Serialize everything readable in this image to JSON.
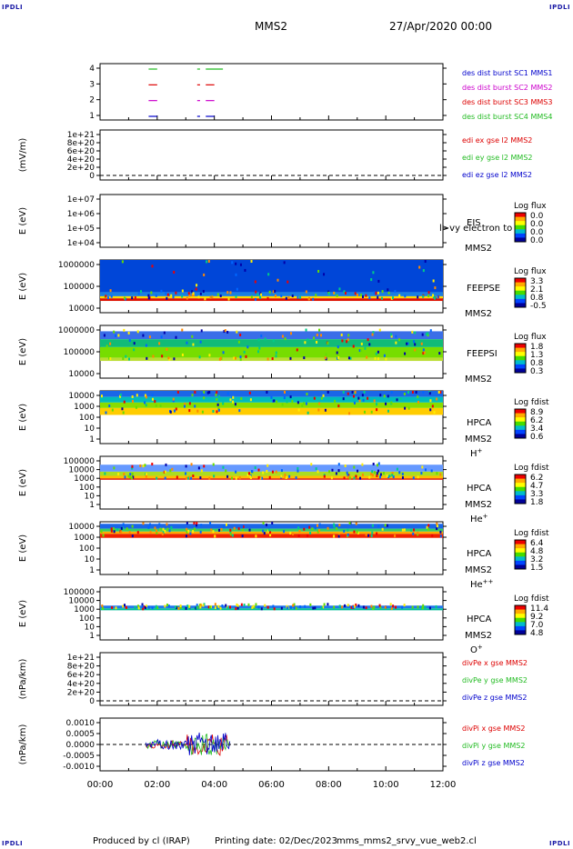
{
  "corner_label": "IPDLI",
  "header": {
    "spacecraft": "MMS2",
    "date": "27/Apr/2020 00:00"
  },
  "footer": {
    "produced_by": "Produced by cl (IRAP)",
    "printing_date": "Printing date: 02/Dec/2023",
    "file_name": "mms_mms2_srvy_vue_web2.cl"
  },
  "time_axis": {
    "ticks": [
      "00:00",
      "02:00",
      "04:00",
      "06:00",
      "08:00",
      "10:00",
      "12:00"
    ]
  },
  "colors": {
    "ink": "#000000",
    "corner": "#1a1aa6",
    "red": "#dd0000",
    "green": "#22bb22",
    "blue": "#0000cc",
    "magenta": "#cc00cc",
    "spectrogram_fill": "#0046d8"
  },
  "colormap": [
    "#ee0000",
    "#ff8800",
    "#ffee00",
    "#66dd00",
    "#00cc88",
    "#0066ff",
    "#0000aa"
  ],
  "chart_data": [
    {
      "type": "line",
      "name": "des dist burst",
      "ylabel": "",
      "yticks": [
        "4",
        "3",
        "2",
        "1"
      ],
      "ylim": [
        0.5,
        4.5
      ],
      "series": [
        {
          "name": "des dist burst SC1 MMS1",
          "color": "#0000cc",
          "y": 1,
          "segments": [
            [
              1.7,
              2.0
            ],
            [
              3.4,
              3.5
            ],
            [
              3.7,
              4.0
            ]
          ]
        },
        {
          "name": "des dist burst SC2 MMS2",
          "color": "#cc00cc",
          "y": 2,
          "segments": [
            [
              1.7,
              2.0
            ],
            [
              3.4,
              3.5
            ],
            [
              3.7,
              4.0
            ]
          ]
        },
        {
          "name": "des dist burst SC3 MMS3",
          "color": "#dd0000",
          "y": 3,
          "segments": [
            [
              1.7,
              2.0
            ],
            [
              3.4,
              3.5
            ],
            [
              3.7,
              4.0
            ]
          ]
        },
        {
          "name": "des dist burst SC4 MMS4",
          "color": "#22bb22",
          "y": 4,
          "segments": [
            [
              1.7,
              2.0
            ],
            [
              3.4,
              3.5
            ],
            [
              3.7,
              4.3
            ]
          ]
        }
      ],
      "legend": [
        "des dist burst SC1 MMS1",
        "des dist burst SC2 MMS2",
        "des dist burst SC3 MMS3",
        "des dist burst SC4 MMS4"
      ],
      "legend_colors": [
        "#0000cc",
        "#cc00cc",
        "#dd0000",
        "#22bb22"
      ]
    },
    {
      "type": "line",
      "name": "edi",
      "ylabel": "(mV/m)",
      "yticks": [
        "1e+21",
        "8e+20",
        "6e+20",
        "4e+20",
        "2e+20",
        "0"
      ],
      "ylim": [
        0,
        1e+21
      ],
      "zero_line": true,
      "legend": [
        "edi ex gse l2 MMS2",
        "edi ey gse l2 MMS2",
        "edi ez gse l2 MMS2"
      ],
      "legend_colors": [
        "#dd0000",
        "#22bb22",
        "#0000cc"
      ]
    },
    {
      "type": "heatmap",
      "name": "EIS",
      "ylabel": "E (eV)",
      "yticks": [
        "1e+07",
        "1e+06",
        "1e+05",
        "1e+04"
      ],
      "ylim": [
        10000,
        10000000
      ],
      "instrument": "EIS",
      "probe": "MMS2",
      "overlay_note": "l>vy electron to",
      "colorbar_title": "Log flux",
      "colorbar_ticks": [
        "0.0",
        "0.0",
        "0.0",
        "0.0"
      ],
      "x_range": null
    },
    {
      "type": "heatmap",
      "name": "FEEPSE",
      "ylabel": "E (eV)",
      "yticks": [
        "1000000",
        "100000",
        "10000"
      ],
      "ylim": [
        10000,
        1000000
      ],
      "instrument": "FEEPSE",
      "probe": "MMS2",
      "colorbar_title": "Log flux",
      "colorbar_ticks": [
        "3.3",
        "2.1",
        "0.8",
        "-0.5"
      ],
      "x_range": [
        0,
        12
      ],
      "bands": [
        {
          "from": 1000000,
          "to": 60000,
          "color": "#0046d8"
        },
        {
          "from": 60000,
          "to": 42000,
          "color": "#1a7ee0"
        },
        {
          "from": 42000,
          "to": 35000,
          "color": "#ffd800"
        },
        {
          "from": 35000,
          "to": 28000,
          "color": "#dd1100"
        }
      ]
    },
    {
      "type": "heatmap",
      "name": "FEEPSI",
      "ylabel": "E (eV)",
      "yticks": [
        "1000000",
        "100000",
        "10000"
      ],
      "ylim": [
        10000,
        1000000
      ],
      "instrument": "FEEPSI",
      "probe": "MMS2",
      "colorbar_title": "Log flux",
      "colorbar_ticks": [
        "1.8",
        "1.3",
        "0.8",
        "0.3"
      ],
      "x_range": [
        0,
        12
      ],
      "bands": [
        {
          "from": 600000,
          "to": 300000,
          "color": "#3a6ee8"
        },
        {
          "from": 300000,
          "to": 150000,
          "color": "#11bb77"
        },
        {
          "from": 150000,
          "to": 60000,
          "color": "#77dd00"
        },
        {
          "from": 60000,
          "to": 45000,
          "color": "#bbdd33"
        }
      ]
    },
    {
      "type": "heatmap",
      "name": "HPCA H+",
      "ylabel": "E (eV)",
      "yticks": [
        "10000",
        "1000",
        "100",
        "10",
        "1"
      ],
      "ylim": [
        1,
        10000
      ],
      "instrument": "HPCA",
      "probe": "MMS2",
      "species": "H",
      "charge": "+",
      "colorbar_title": "Log fdist",
      "colorbar_ticks": [
        "8.9",
        "6.2",
        "3.4",
        "0.6"
      ],
      "x_range": [
        0,
        12
      ],
      "bands": [
        {
          "from": 16000,
          "to": 3500,
          "color": "#1a66e8"
        },
        {
          "from": 3500,
          "to": 1300,
          "color": "#00bbbb"
        },
        {
          "from": 1300,
          "to": 500,
          "color": "#88dd00"
        },
        {
          "from": 500,
          "to": 150,
          "color": "#ffcc00"
        }
      ]
    },
    {
      "type": "heatmap",
      "name": "HPCA He+",
      "ylabel": "E (eV)",
      "yticks": [
        "100000",
        "10000",
        "1000",
        "100",
        "10",
        "1"
      ],
      "ylim": [
        1,
        100000
      ],
      "instrument": "HPCA",
      "probe": "MMS2",
      "species": "He",
      "charge": "+",
      "colorbar_title": "Log fdist",
      "colorbar_ticks": [
        "6.2",
        "4.7",
        "3.3",
        "1.8"
      ],
      "x_range": [
        0,
        12
      ],
      "bands": [
        {
          "from": 16000,
          "to": 3500,
          "color": "#6699ff"
        },
        {
          "from": 3500,
          "to": 1400,
          "color": "#aadd22"
        },
        {
          "from": 1400,
          "to": 800,
          "color": "#ffbb00"
        },
        {
          "from": 800,
          "to": 600,
          "color": "#dd1100"
        }
      ]
    },
    {
      "type": "heatmap",
      "name": "HPCA He++",
      "ylabel": "E (eV)",
      "yticks": [
        "10000",
        "1000",
        "100",
        "10",
        "1"
      ],
      "ylim": [
        1,
        10000
      ],
      "instrument": "HPCA",
      "probe": "MMS2",
      "species": "He",
      "charge": "++",
      "colorbar_title": "Log fdist",
      "colorbar_ticks": [
        "6.4",
        "4.8",
        "3.2",
        "1.5"
      ],
      "x_range": [
        0,
        12
      ],
      "bands": [
        {
          "from": 7000,
          "to": 3000,
          "color": "#1a66e8"
        },
        {
          "from": 3000,
          "to": 1800,
          "color": "#33cc66"
        },
        {
          "from": 1800,
          "to": 1200,
          "color": "#ffaa00"
        },
        {
          "from": 1200,
          "to": 600,
          "color": "#ee2200"
        }
      ]
    },
    {
      "type": "heatmap",
      "name": "HPCA O+",
      "ylabel": "E (eV)",
      "yticks": [
        "100000",
        "10000",
        "1000",
        "100",
        "10",
        "1"
      ],
      "ylim": [
        1,
        100000
      ],
      "instrument": "HPCA",
      "probe": "MMS2",
      "species": "O",
      "charge": "+",
      "colorbar_title": "Log fdist",
      "colorbar_ticks": [
        "11.4",
        "9.2",
        "7.0",
        "4.8"
      ],
      "x_range": [
        0,
        12
      ],
      "bands": [
        {
          "from": 1800,
          "to": 1000,
          "color": "#2277ee"
        },
        {
          "from": 1000,
          "to": 650,
          "color": "#00bb99"
        }
      ]
    },
    {
      "type": "line",
      "name": "divPe",
      "ylabel": "(nPa/km)",
      "yticks": [
        "1e+21",
        "8e+20",
        "6e+20",
        "4e+20",
        "2e+20",
        "0"
      ],
      "ylim": [
        0,
        1e+21
      ],
      "zero_line": true,
      "legend": [
        "divPe x gse MMS2",
        "divPe y gse MMS2",
        "divPe z gse MMS2"
      ],
      "legend_colors": [
        "#dd0000",
        "#22bb22",
        "#0000cc"
      ]
    },
    {
      "type": "line",
      "name": "divPi",
      "ylabel": "(nPa/km)",
      "yticks": [
        "0.0010",
        "0.0005",
        "0.0000",
        "-0.0005",
        "-0.0010"
      ],
      "ylim": [
        -0.0012,
        0.0012
      ],
      "zero_line": true,
      "x_range": [
        1.6,
        4.55
      ],
      "legend": [
        "divPi x gse MMS2",
        "divPi y gse MMS2",
        "divPi z gse MMS2"
      ],
      "legend_colors": [
        "#dd0000",
        "#22bb22",
        "#0000cc"
      ]
    }
  ]
}
